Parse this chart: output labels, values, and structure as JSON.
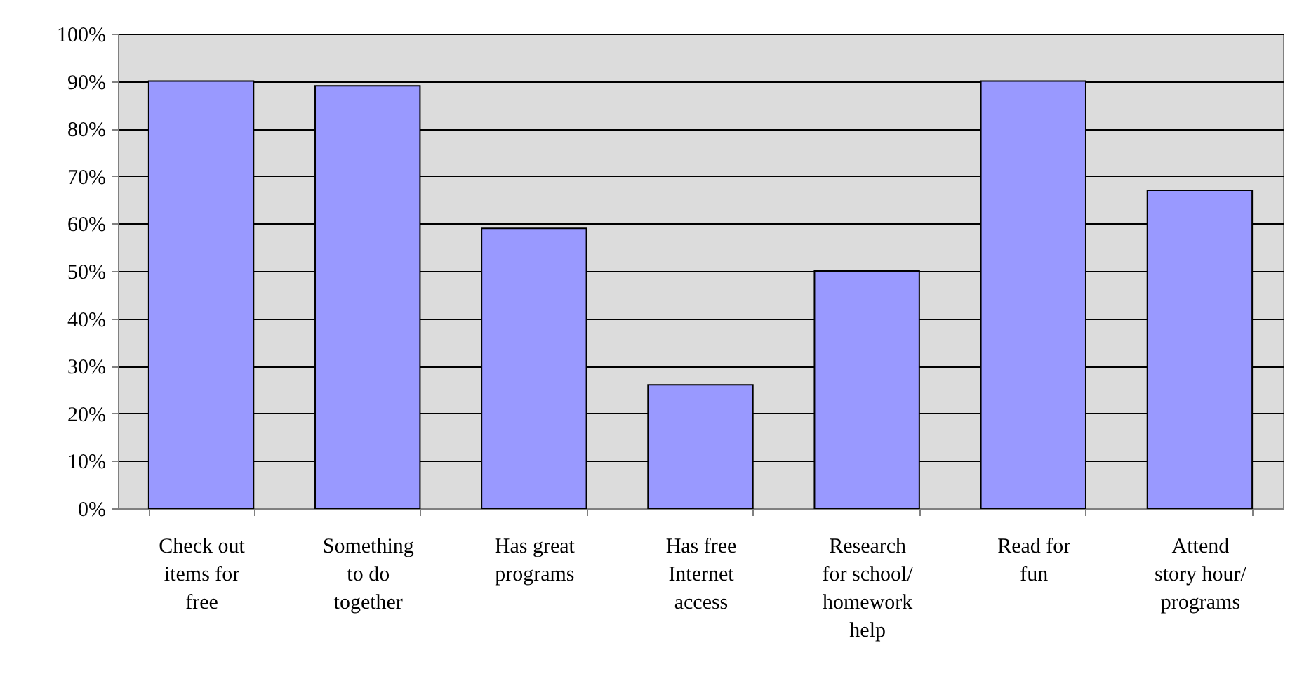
{
  "chart_data": {
    "type": "bar",
    "categories": [
      "Check out items for free",
      "Something to do together",
      "Has great programs",
      "Has free Internet access",
      "Research for school/ homework help",
      "Read for fun",
      "Attend story hour/ programs"
    ],
    "values": [
      0.9,
      0.89,
      0.59,
      0.26,
      0.5,
      0.9,
      0.67
    ],
    "color": "#9999ff",
    "ylim": [
      0,
      1
    ],
    "yticks": [
      {
        "value": 0,
        "label": "0%"
      },
      {
        "value": 0.1,
        "label": "10%"
      },
      {
        "value": 0.2,
        "label": "20%"
      },
      {
        "value": 0.3,
        "label": "30%"
      },
      {
        "value": 0.4,
        "label": "40%"
      },
      {
        "value": 0.5,
        "label": "50%"
      },
      {
        "value": 0.6,
        "label": "60%"
      },
      {
        "value": 0.7,
        "label": "70%"
      },
      {
        "value": 0.8,
        "label": "80%"
      },
      {
        "value": 0.9,
        "label": "90%"
      },
      {
        "value": 1,
        "label": "100%"
      }
    ],
    "grid": "y"
  }
}
